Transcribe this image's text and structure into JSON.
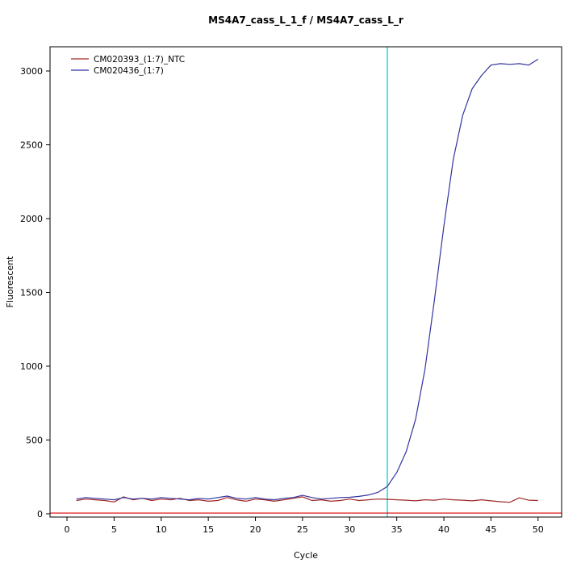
{
  "title": "MS4A7_cass_L_1_f / MS4A7_cass_L_r",
  "chart_data": {
    "type": "line",
    "title": "MS4A7_cass_L_1_f / MS4A7_cass_L_r",
    "xlabel": "Cycle",
    "ylabel": "Fluorescent",
    "xlim": [
      0,
      50
    ],
    "ylim": [
      0,
      3000
    ],
    "xticks": [
      0,
      5,
      10,
      15,
      20,
      25,
      30,
      35,
      40,
      45,
      50
    ],
    "yticks": [
      0,
      500,
      1000,
      1500,
      2000,
      2500,
      3000
    ],
    "grid": false,
    "legend_position": "top-left",
    "box_color": "#000000",
    "threshold_line": {
      "y": 5,
      "color": "#dd0000"
    },
    "ct_line": {
      "x": 34,
      "color": "#55e2ee"
    },
    "x": [
      1,
      2,
      3,
      4,
      5,
      6,
      7,
      8,
      9,
      10,
      11,
      12,
      13,
      14,
      15,
      16,
      17,
      18,
      19,
      20,
      21,
      22,
      23,
      24,
      25,
      26,
      27,
      28,
      29,
      30,
      31,
      32,
      33,
      34,
      35,
      36,
      37,
      38,
      39,
      40,
      41,
      42,
      43,
      44,
      45,
      46,
      47,
      48,
      49,
      50
    ],
    "series": [
      {
        "name": "CM020393_(1:7)_NTC",
        "color": "#a02828",
        "values": [
          90,
          100,
          95,
          90,
          80,
          115,
          95,
          105,
          90,
          100,
          95,
          105,
          90,
          95,
          85,
          90,
          110,
          95,
          85,
          100,
          95,
          85,
          95,
          105,
          115,
          90,
          95,
          85,
          90,
          100,
          90,
          95,
          100,
          98,
          95,
          92,
          88,
          95,
          92,
          100,
          95,
          92,
          88,
          95,
          88,
          82,
          78,
          108,
          92,
          90
        ]
      },
      {
        "name": "CM020436_(1:7)",
        "color": "#3333a0",
        "values": [
          100,
          110,
          105,
          100,
          95,
          110,
          100,
          105,
          100,
          110,
          105,
          100,
          95,
          105,
          100,
          110,
          120,
          105,
          100,
          110,
          100,
          95,
          105,
          110,
          125,
          110,
          100,
          105,
          110,
          112,
          118,
          128,
          145,
          185,
          280,
          420,
          640,
          980,
          1450,
          1950,
          2400,
          2700,
          2880,
          2970,
          3040,
          3050,
          3045,
          3050,
          3040,
          3080
        ]
      }
    ]
  }
}
